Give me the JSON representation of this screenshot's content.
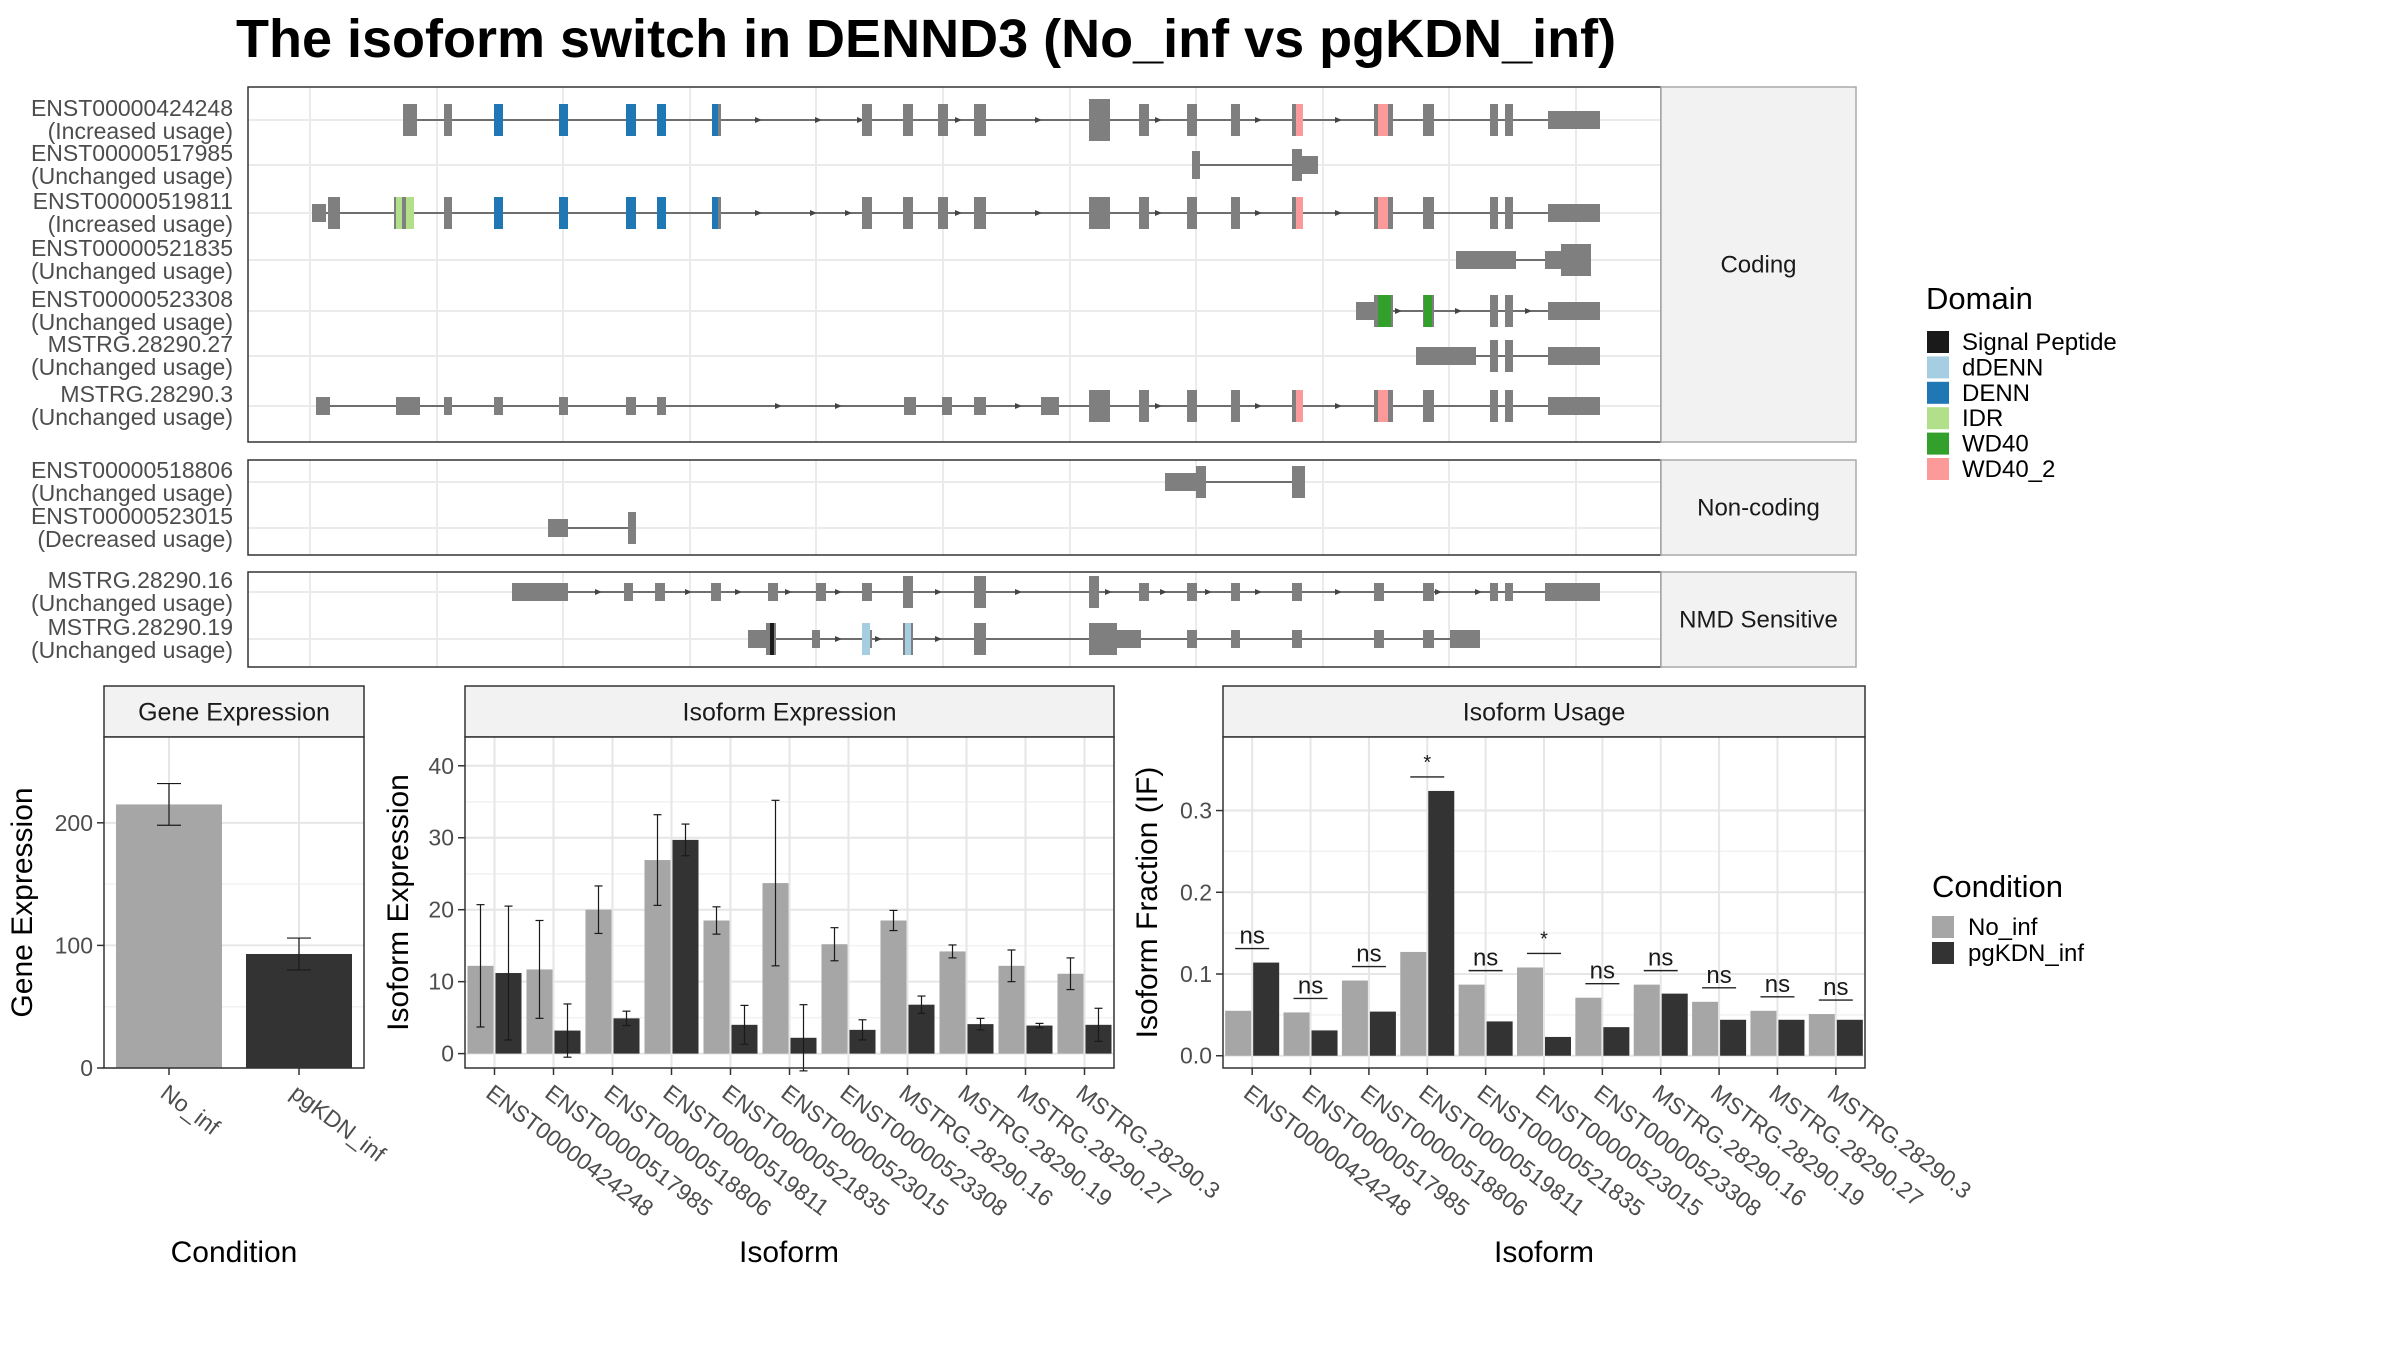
{
  "title": "The isoform switch in DENND3 (No_inf vs pgKDN_inf)",
  "structure": {
    "sections": [
      {
        "label": "Coding",
        "rows": [
          {
            "id": "ENST00000424248",
            "usage": "(Increased usage)"
          },
          {
            "id": "ENST00000517985",
            "usage": "(Unchanged usage)"
          },
          {
            "id": "ENST00000519811",
            "usage": "(Increased usage)"
          },
          {
            "id": "ENST00000521835",
            "usage": "(Unchanged usage)"
          },
          {
            "id": "ENST00000523308",
            "usage": "(Unchanged usage)"
          },
          {
            "id": "MSTRG.28290.27",
            "usage": "(Unchanged usage)"
          },
          {
            "id": "MSTRG.28290.3",
            "usage": "(Unchanged usage)"
          }
        ]
      },
      {
        "label": "Non-coding",
        "rows": [
          {
            "id": "ENST00000518806",
            "usage": "(Unchanged usage)"
          },
          {
            "id": "ENST00000523015",
            "usage": "(Decreased usage)"
          }
        ]
      },
      {
        "label": "NMD Sensitive",
        "rows": [
          {
            "id": "MSTRG.28290.16",
            "usage": "(Unchanged usage)"
          },
          {
            "id": "MSTRG.28290.19",
            "usage": "(Unchanged usage)"
          }
        ]
      }
    ],
    "domain_legend": {
      "title": "Domain",
      "items": [
        {
          "name": "Signal Peptide",
          "color": "#1a1a1a"
        },
        {
          "name": "dDENN",
          "color": "#a6cee3"
        },
        {
          "name": "DENN",
          "color": "#1f78b4"
        },
        {
          "name": "IDR",
          "color": "#b2df8a"
        },
        {
          "name": "WD40",
          "color": "#33a02c"
        },
        {
          "name": "WD40_2",
          "color": "#fb9a99"
        }
      ]
    }
  },
  "condition_legend": {
    "title": "Condition",
    "items": [
      {
        "name": "No_inf",
        "color": "#a6a6a6"
      },
      {
        "name": "pgKDN_inf",
        "color": "#333333"
      }
    ]
  },
  "chart_data": [
    {
      "type": "bar",
      "title": "Gene Expression",
      "xlabel": "Condition",
      "ylabel": "Gene Expression",
      "categories": [
        "No_inf",
        "pgKDN_inf"
      ],
      "values": [
        215,
        93
      ],
      "errors": [
        17,
        13
      ],
      "ylim": [
        0,
        270
      ],
      "yticks": [
        0,
        100,
        200
      ]
    },
    {
      "type": "bar",
      "title": "Isoform Expression",
      "xlabel": "Isoform",
      "ylabel": "Isoform Expression",
      "categories": [
        "ENST00000424248",
        "ENST00000517985",
        "ENST00000518806",
        "ENST00000519811",
        "ENST00000521835",
        "ENST00000523015",
        "ENST00000523308",
        "MSTRG.28290.16",
        "MSTRG.28290.19",
        "MSTRG.28290.27",
        "MSTRG.28290.3"
      ],
      "series": [
        {
          "name": "No_inf",
          "values": [
            12.2,
            11.7,
            20.0,
            26.9,
            18.5,
            23.7,
            15.2,
            18.5,
            14.2,
            12.2,
            11.1
          ],
          "errors": [
            8.5,
            6.8,
            3.3,
            6.3,
            1.9,
            11.5,
            2.3,
            1.4,
            0.9,
            2.2,
            2.2
          ]
        },
        {
          "name": "pgKDN_inf",
          "values": [
            11.2,
            3.2,
            4.9,
            29.7,
            4.0,
            2.2,
            3.3,
            6.8,
            4.1,
            3.9,
            4.0
          ],
          "errors": [
            9.3,
            3.7,
            1.0,
            2.2,
            2.7,
            4.6,
            1.4,
            1.2,
            0.8,
            0.3,
            2.3
          ]
        }
      ],
      "ylim": [
        -2,
        44
      ],
      "yticks": [
        0,
        10,
        20,
        30,
        40
      ]
    },
    {
      "type": "bar",
      "title": "Isoform Usage",
      "xlabel": "Isoform",
      "ylabel": "Isoform Fraction (IF)",
      "categories": [
        "ENST00000424248",
        "ENST00000517985",
        "ENST00000518806",
        "ENST00000519811",
        "ENST00000521835",
        "ENST00000523015",
        "ENST00000523308",
        "MSTRG.28290.16",
        "MSTRG.28290.19",
        "MSTRG.28290.27",
        "MSTRG.28290.3"
      ],
      "series": [
        {
          "name": "No_inf",
          "values": [
            0.055,
            0.053,
            0.092,
            0.127,
            0.087,
            0.108,
            0.071,
            0.087,
            0.066,
            0.055,
            0.051
          ]
        },
        {
          "name": "pgKDN_inf",
          "values": [
            0.114,
            0.031,
            0.054,
            0.324,
            0.042,
            0.023,
            0.035,
            0.076,
            0.044,
            0.044,
            0.044
          ]
        }
      ],
      "significance": [
        "ns",
        "ns",
        "ns",
        "*",
        "ns",
        "*",
        "ns",
        "ns",
        "ns",
        "ns",
        "ns"
      ],
      "ylim": [
        -0.015,
        0.39
      ],
      "yticks": [
        "0.0",
        "0.1",
        "0.2",
        "0.3"
      ]
    }
  ]
}
